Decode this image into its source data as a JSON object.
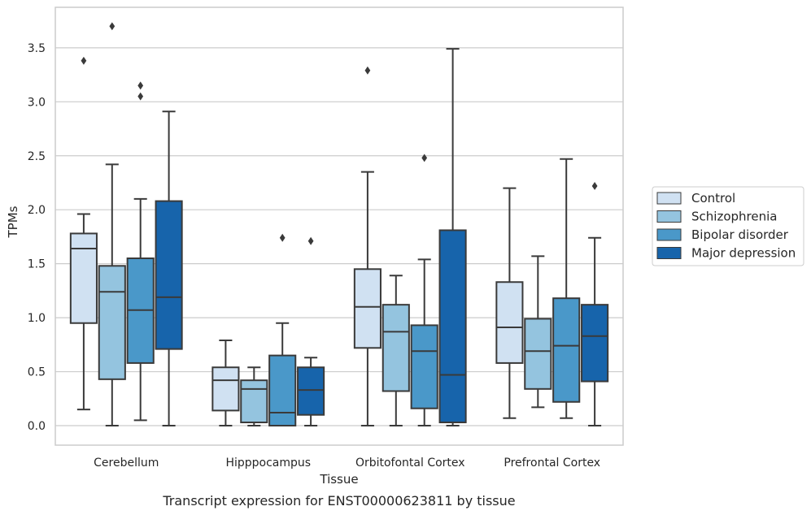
{
  "caption": "Transcript expression for ENST00000623811 by tissue",
  "chart_data": {
    "type": "box",
    "xlabel": "Tissue",
    "ylabel": "TPMs",
    "ylim": [
      -0.18,
      3.88
    ],
    "yticks": [
      "0.0",
      "0.5",
      "1.0",
      "1.5",
      "2.0",
      "2.5",
      "3.0",
      "3.5"
    ],
    "categories": [
      "Cerebellum",
      "Hipppocampus",
      "Orbitofontal Cortex",
      "Prefrontal Cortex"
    ],
    "grid": "horizontal",
    "legend_position": "right",
    "series": [
      {
        "name": "Control",
        "color": "#d0e1f2",
        "boxes": [
          {
            "whisker_low": 0.15,
            "q1": 0.95,
            "median": 1.64,
            "q3": 1.78,
            "whisker_high": 1.96,
            "outliers": [
              3.38
            ]
          },
          {
            "whisker_low": 0.0,
            "q1": 0.14,
            "median": 0.42,
            "q3": 0.54,
            "whisker_high": 0.79,
            "outliers": []
          },
          {
            "whisker_low": 0.0,
            "q1": 0.72,
            "median": 1.1,
            "q3": 1.45,
            "whisker_high": 2.35,
            "outliers": [
              3.29
            ]
          },
          {
            "whisker_low": 0.07,
            "q1": 0.58,
            "median": 0.91,
            "q3": 1.33,
            "whisker_high": 2.2,
            "outliers": []
          }
        ]
      },
      {
        "name": "Schizophrenia",
        "color": "#94c4df",
        "boxes": [
          {
            "whisker_low": 0.0,
            "q1": 0.43,
            "median": 1.24,
            "q3": 1.48,
            "whisker_high": 2.42,
            "outliers": [
              3.7
            ]
          },
          {
            "whisker_low": 0.0,
            "q1": 0.03,
            "median": 0.34,
            "q3": 0.42,
            "whisker_high": 0.54,
            "outliers": []
          },
          {
            "whisker_low": 0.0,
            "q1": 0.32,
            "median": 0.87,
            "q3": 1.12,
            "whisker_high": 1.39,
            "outliers": []
          },
          {
            "whisker_low": 0.17,
            "q1": 0.34,
            "median": 0.69,
            "q3": 0.99,
            "whisker_high": 1.57,
            "outliers": []
          }
        ]
      },
      {
        "name": "Bipolar disorder",
        "color": "#4a98c9",
        "boxes": [
          {
            "whisker_low": 0.05,
            "q1": 0.58,
            "median": 1.07,
            "q3": 1.55,
            "whisker_high": 2.1,
            "outliers": [
              3.05,
              3.15
            ]
          },
          {
            "whisker_low": 0.0,
            "q1": 0.0,
            "median": 0.12,
            "q3": 0.65,
            "whisker_high": 0.95,
            "outliers": [
              1.74
            ]
          },
          {
            "whisker_low": 0.0,
            "q1": 0.16,
            "median": 0.69,
            "q3": 0.93,
            "whisker_high": 1.54,
            "outliers": [
              2.48
            ]
          },
          {
            "whisker_low": 0.07,
            "q1": 0.22,
            "median": 0.74,
            "q3": 1.18,
            "whisker_high": 2.47,
            "outliers": []
          }
        ]
      },
      {
        "name": "Major depression",
        "color": "#1764ab",
        "boxes": [
          {
            "whisker_low": 0.0,
            "q1": 0.71,
            "median": 1.19,
            "q3": 2.08,
            "whisker_high": 2.91,
            "outliers": []
          },
          {
            "whisker_low": 0.0,
            "q1": 0.1,
            "median": 0.33,
            "q3": 0.54,
            "whisker_high": 0.63,
            "outliers": [
              1.71
            ]
          },
          {
            "whisker_low": 0.0,
            "q1": 0.03,
            "median": 0.47,
            "q3": 1.81,
            "whisker_high": 3.49,
            "outliers": []
          },
          {
            "whisker_low": 0.0,
            "q1": 0.41,
            "median": 0.83,
            "q3": 1.12,
            "whisker_high": 1.74,
            "outliers": [
              2.22
            ]
          }
        ]
      }
    ]
  }
}
